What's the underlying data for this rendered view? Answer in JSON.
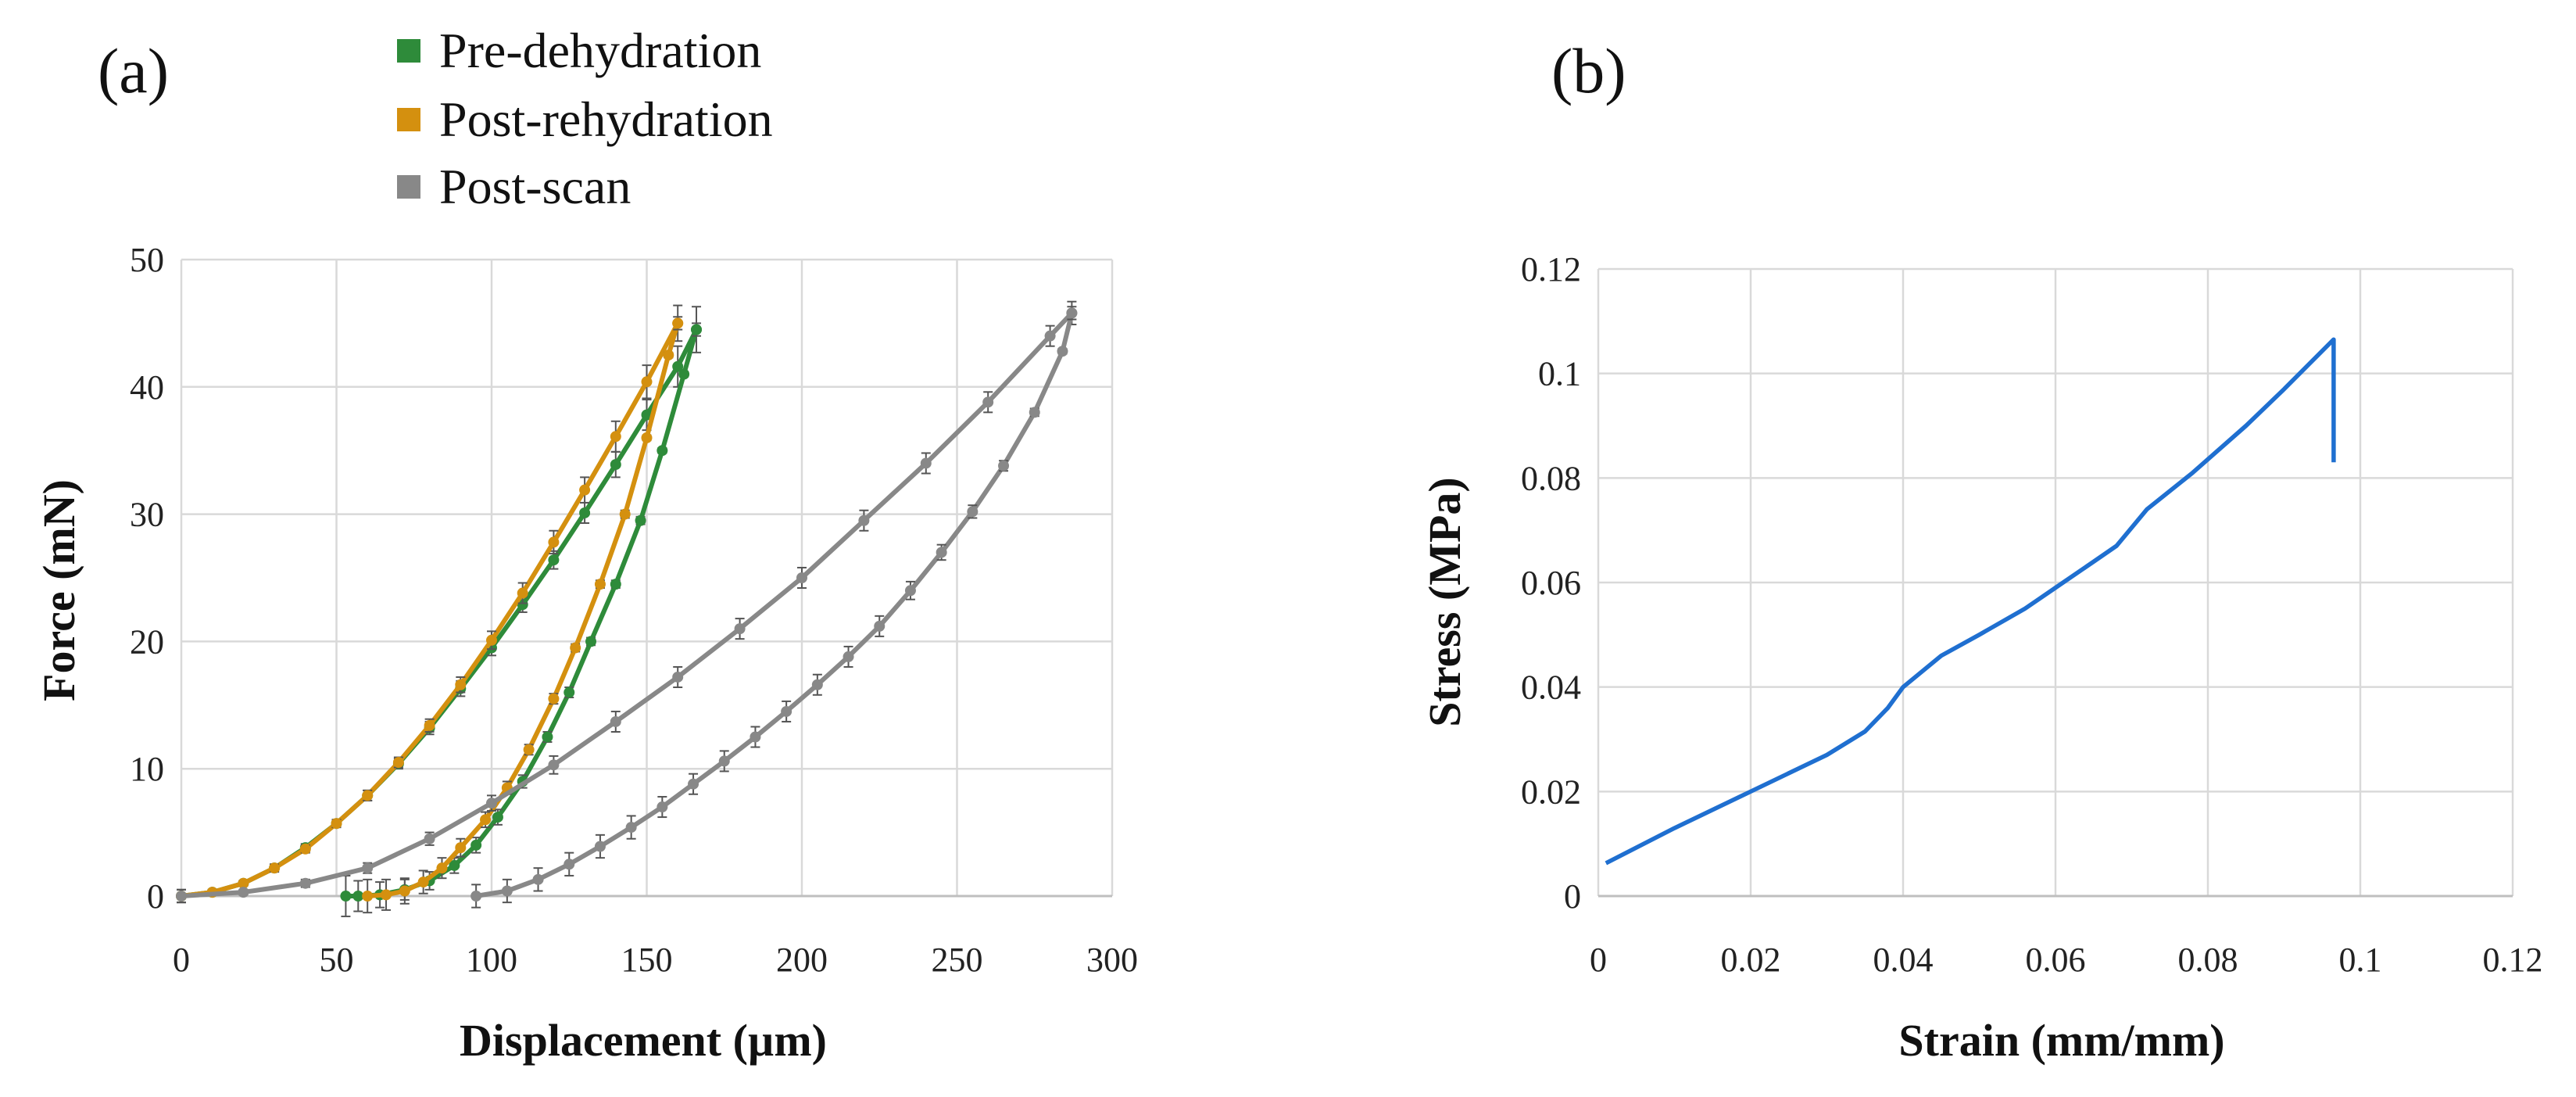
{
  "figure": {
    "panel_a_label": "(a)",
    "panel_b_label": "(b)"
  },
  "chart_data": [
    {
      "id": "a",
      "type": "line",
      "xlabel": "Displacement (µm)",
      "ylabel": "Force (mN)",
      "xlim": [
        0,
        300
      ],
      "ylim": [
        0,
        50
      ],
      "x_ticks": [
        "0",
        "50",
        "100",
        "150",
        "200",
        "250",
        "300"
      ],
      "y_ticks": [
        "0",
        "10",
        "20",
        "30",
        "40",
        "50"
      ],
      "grid": true,
      "legend_position": "top",
      "series": [
        {
          "name": "Pre-dehydration",
          "color": "#2e8b3a",
          "loading": {
            "x": [
              0,
              10,
              20,
              30,
              40,
              50,
              60,
              70,
              80,
              90,
              100,
              110,
              120,
              130,
              140,
              150,
              160,
              166
            ],
            "y": [
              0,
              0.3,
              1.0,
              2.2,
              3.8,
              5.7,
              7.9,
              10.4,
              13.2,
              16.3,
              19.5,
              22.9,
              26.4,
              30.1,
              33.9,
              37.8,
              41.6,
              44.5
            ]
          },
          "unloading": {
            "x": [
              166,
              162,
              155,
              148,
              140,
              132,
              125,
              118,
              110,
              102,
              95,
              88,
              80,
              72,
              64,
              57,
              53
            ],
            "y": [
              44.5,
              41.0,
              35.0,
              29.5,
              24.5,
              20.0,
              16.0,
              12.5,
              9.0,
              6.2,
              4.0,
              2.4,
              1.2,
              0.5,
              0.1,
              0.0,
              0.0
            ]
          },
          "error": [
            0,
            0.2,
            0.2,
            0.3,
            0.3,
            0.3,
            0.4,
            0.4,
            0.5,
            0.6,
            0.6,
            0.6,
            0.7,
            0.8,
            1.0,
            1.2,
            1.6,
            1.8
          ]
        },
        {
          "name": "Post-rehydration",
          "color": "#d4900f",
          "loading": {
            "x": [
              0,
              10,
              20,
              30,
              40,
              50,
              60,
              70,
              80,
              90,
              100,
              110,
              120,
              130,
              140,
              150,
              160
            ],
            "y": [
              0,
              0.3,
              1.0,
              2.2,
              3.7,
              5.7,
              7.9,
              10.5,
              13.4,
              16.6,
              20.1,
              23.8,
              27.8,
              31.9,
              36.1,
              40.4,
              45.0
            ]
          },
          "unloading": {
            "x": [
              160,
              157,
              150,
              143,
              135,
              127,
              120,
              112,
              105,
              98,
              90,
              84,
              78,
              72,
              66,
              60
            ],
            "y": [
              45.0,
              42.5,
              36.0,
              30.0,
              24.5,
              19.5,
              15.5,
              11.5,
              8.5,
              6.0,
              3.8,
              2.2,
              1.1,
              0.4,
              0.1,
              0.0
            ]
          },
          "error": [
            0,
            0.2,
            0.2,
            0.3,
            0.3,
            0.3,
            0.4,
            0.4,
            0.5,
            0.6,
            0.7,
            0.8,
            0.9,
            1.0,
            1.2,
            1.3,
            1.4
          ]
        },
        {
          "name": "Post-scan",
          "color": "#888888",
          "loading": {
            "x": [
              0,
              20,
              40,
              60,
              80,
              100,
              120,
              140,
              160,
              180,
              200,
              220,
              240,
              260,
              280,
              287
            ],
            "y": [
              0,
              0.3,
              1.0,
              2.2,
              4.5,
              7.3,
              10.3,
              13.7,
              17.2,
              21.0,
              25.0,
              29.5,
              34.0,
              38.8,
              44.0,
              45.8
            ]
          },
          "unloading": {
            "x": [
              287,
              284,
              275,
              265,
              255,
              245,
              235,
              225,
              215,
              205,
              195,
              185,
              175,
              165,
              155,
              145,
              135,
              125,
              115,
              105,
              95
            ],
            "y": [
              45.8,
              42.8,
              38.0,
              33.8,
              30.2,
              27.0,
              24.0,
              21.2,
              18.8,
              16.6,
              14.5,
              12.5,
              10.6,
              8.8,
              7.0,
              5.4,
              3.9,
              2.5,
              1.3,
              0.4,
              0.0
            ]
          },
          "error": [
            0,
            0.2,
            0.3,
            0.4,
            0.5,
            0.6,
            0.7,
            0.8,
            0.8,
            0.8,
            0.8,
            0.8,
            0.8,
            0.8,
            0.8,
            0.9
          ]
        }
      ]
    },
    {
      "id": "b",
      "type": "line",
      "xlabel": "Strain (mm/mm)",
      "ylabel": "Stress (MPa)",
      "xlim": [
        0,
        0.12
      ],
      "ylim": [
        0,
        0.12
      ],
      "x_ticks": [
        "0",
        "0.02",
        "0.04",
        "0.06",
        "0.08",
        "0.1",
        "0.12"
      ],
      "y_ticks": [
        "0",
        "0.02",
        "0.04",
        "0.06",
        "0.08",
        "0.1",
        "0.12"
      ],
      "grid": true,
      "series": [
        {
          "color": "#1f6fd0",
          "x": [
            0.001,
            0.01,
            0.02,
            0.03,
            0.035,
            0.038,
            0.04,
            0.045,
            0.05,
            0.056,
            0.06,
            0.065,
            0.068,
            0.072,
            0.078,
            0.085,
            0.09,
            0.0965,
            0.0965
          ],
          "y": [
            0.0063,
            0.013,
            0.02,
            0.027,
            0.0315,
            0.036,
            0.04,
            0.046,
            0.05,
            0.055,
            0.059,
            0.064,
            0.067,
            0.074,
            0.081,
            0.09,
            0.097,
            0.1065,
            0.083
          ]
        }
      ]
    }
  ]
}
